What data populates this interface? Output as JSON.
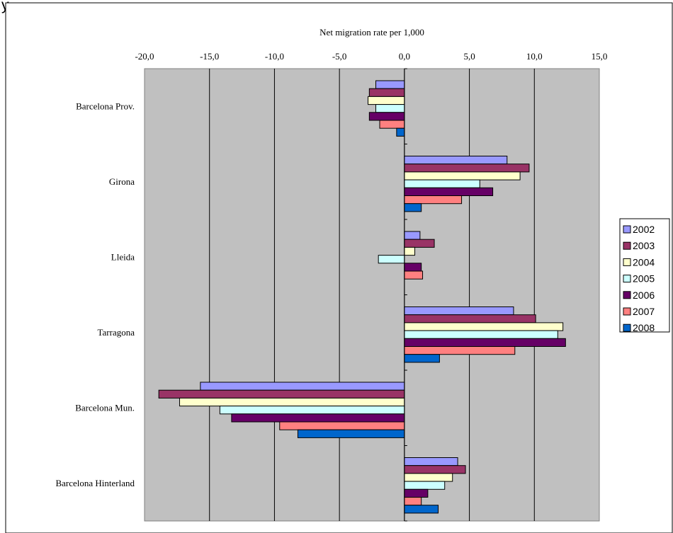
{
  "header_text": "y",
  "chart_data": {
    "type": "bar",
    "orientation": "horizontal",
    "title": "Net migration rate per 1,000",
    "xlim": [
      -20,
      15
    ],
    "xticks": [
      "-20,0",
      "-15,0",
      "-10,0",
      "-5,0",
      "0,0",
      "5,0",
      "10,0",
      "15,0"
    ],
    "xtick_values": [
      -20,
      -15,
      -10,
      -5,
      0,
      5,
      10,
      15
    ],
    "categories": [
      "Barcelona Prov.",
      "Girona",
      "Lleida",
      "Tarragona",
      "Barcelona Mun.",
      "Barcelona Hinterland"
    ],
    "series": [
      {
        "name": "2002",
        "color": "#9999ff",
        "values": [
          -2.2,
          7.9,
          1.2,
          8.4,
          -15.7,
          4.1
        ]
      },
      {
        "name": "2003",
        "color": "#993366",
        "values": [
          -2.7,
          9.6,
          2.3,
          10.1,
          -18.9,
          4.7
        ]
      },
      {
        "name": "2004",
        "color": "#ffffcc",
        "values": [
          -2.8,
          8.9,
          0.8,
          12.2,
          -17.3,
          3.7
        ]
      },
      {
        "name": "2005",
        "color": "#ccffff",
        "values": [
          -2.2,
          5.8,
          -2.0,
          11.8,
          -14.2,
          3.1
        ]
      },
      {
        "name": "2006",
        "color": "#660066",
        "values": [
          -2.7,
          6.8,
          1.3,
          12.4,
          -13.3,
          1.8
        ]
      },
      {
        "name": "2007",
        "color": "#ff8080",
        "values": [
          -1.9,
          4.4,
          1.4,
          8.5,
          -9.6,
          1.3
        ]
      },
      {
        "name": "2008",
        "color": "#0066cc",
        "values": [
          -0.6,
          1.3,
          0.0,
          2.7,
          -8.2,
          2.6
        ]
      }
    ],
    "grid": true,
    "legend_position": "right",
    "plot_background": "#c0c0c0"
  }
}
